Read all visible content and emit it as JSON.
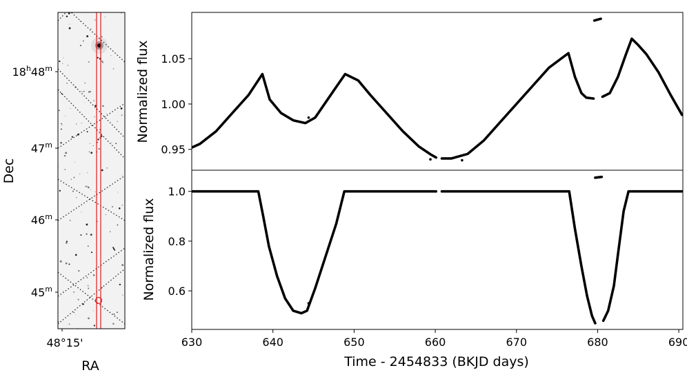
{
  "image_panel": {
    "type": "sky-image",
    "ylabel": "Dec",
    "xlabel": "RA",
    "dec_ticks": [
      {
        "h": "18",
        "m": "48",
        "label": "18h48m"
      },
      {
        "m": "47",
        "label": "47m"
      },
      {
        "m": "46",
        "label": "46m"
      },
      {
        "m": "45",
        "label": "45m"
      }
    ],
    "ra_tick": "48°15'",
    "aperture_color": "#e31a1c",
    "circle_color": "#e31a1c"
  },
  "chart_data": [
    {
      "type": "scatter",
      "title": "",
      "xlabel": "",
      "ylabel": "Normalized flux",
      "xlim": [
        630,
        690.5
      ],
      "ylim": [
        0.927,
        1.101
      ],
      "yticks": [
        0.95,
        1.0,
        1.05
      ],
      "ytick_labels": [
        "0.95",
        "1.00",
        "1.05"
      ],
      "color": "#000000",
      "segments": [
        {
          "x": [
            630,
            631,
            633,
            635,
            637,
            638.7,
            639.6,
            641,
            642.5,
            644,
            645.2,
            647.5,
            648.9,
            650.5,
            652,
            654,
            656,
            658,
            659.5,
            660.1
          ],
          "y": [
            0.952,
            0.956,
            0.97,
            0.99,
            1.01,
            1.033,
            1.005,
            0.99,
            0.982,
            0.979,
            0.985,
            1.015,
            1.033,
            1.026,
            1.01,
            0.99,
            0.97,
            0.953,
            0.944,
            0.941
          ]
        },
        {
          "x": [
            660.8,
            662,
            664,
            666,
            668,
            670,
            672,
            674,
            675.5,
            676.4,
            677.2,
            678,
            678.6,
            679.5
          ],
          "y": [
            0.94,
            0.94,
            0.945,
            0.96,
            0.98,
            1.0,
            1.02,
            1.04,
            1.05,
            1.056,
            1.03,
            1.012,
            1.007,
            1.006
          ]
        },
        {
          "x": [
            679.6,
            680.4
          ],
          "y": [
            1.092,
            1.094
          ]
        },
        {
          "x": [
            680.6,
            681.5,
            682.5,
            683.5,
            684.2,
            685,
            686,
            687.5,
            689,
            690.4
          ],
          "y": [
            1.008,
            1.012,
            1.03,
            1.055,
            1.072,
            1.065,
            1.055,
            1.035,
            1.01,
            0.988
          ]
        }
      ],
      "outliers": [
        {
          "x": 644.4,
          "y": 0.985
        },
        {
          "x": 659.4,
          "y": 0.939
        },
        {
          "x": 663.3,
          "y": 0.938
        }
      ]
    },
    {
      "type": "scatter",
      "title": "",
      "xlabel": "Time - 2454833 (BKJD days)",
      "ylabel": "Normalized flux",
      "xlim": [
        630,
        690.5
      ],
      "ylim": [
        0.445,
        1.085
      ],
      "xticks": [
        630,
        640,
        650,
        660,
        670,
        680,
        690
      ],
      "yticks": [
        0.6,
        0.8,
        1.0
      ],
      "ytick_labels": [
        "0.6",
        "0.8",
        "1.0"
      ],
      "color": "#000000",
      "segments": [
        {
          "x": [
            630,
            634,
            638.2,
            638.8,
            639.5,
            640.5,
            641.5,
            642.5,
            643.5,
            644.2,
            645.2,
            646.5,
            647.8,
            648.8,
            650,
            655,
            660.1
          ],
          "y": [
            1.0,
            1.0,
            1.0,
            0.9,
            0.78,
            0.66,
            0.57,
            0.52,
            0.51,
            0.52,
            0.61,
            0.74,
            0.87,
            1.0,
            1.0,
            1.0,
            1.0
          ]
        },
        {
          "x": [
            660.8,
            665,
            670,
            675,
            676.5,
            677.2,
            678,
            678.7,
            679.3,
            679.7
          ],
          "y": [
            1.0,
            1.0,
            1.0,
            1.0,
            1.0,
            0.85,
            0.7,
            0.58,
            0.5,
            0.47
          ]
        },
        {
          "x": [
            679.7,
            680.5
          ],
          "y": [
            1.055,
            1.058
          ]
        },
        {
          "x": [
            680.7,
            681.3,
            682,
            682.6,
            683.2,
            683.8,
            686,
            690.4
          ],
          "y": [
            0.48,
            0.52,
            0.62,
            0.77,
            0.92,
            1.0,
            1.0,
            1.0
          ]
        }
      ],
      "outliers": [
        {
          "x": 644.4,
          "y": 0.55
        }
      ]
    }
  ]
}
